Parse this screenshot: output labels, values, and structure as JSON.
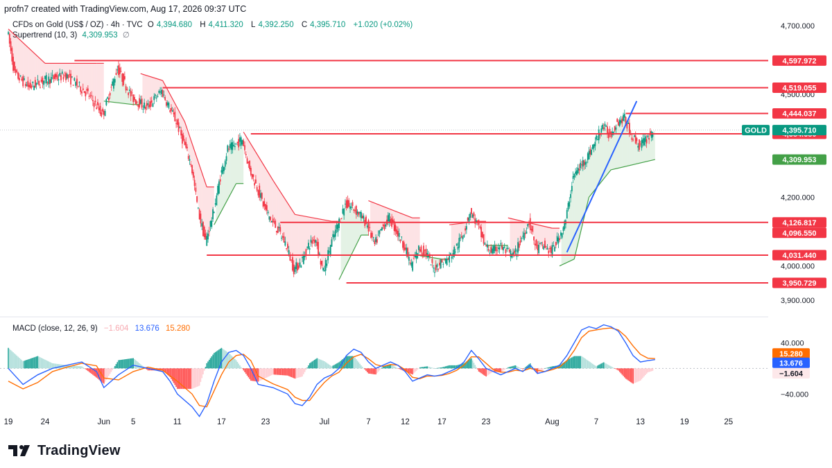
{
  "header": {
    "creator": "profn7 created with TradingView.com, Aug 17, 2026 09:37 UTC"
  },
  "legend": {
    "symbol": "CFDs on Gold (US$ / OZ) · 4h · TVC",
    "open_label": "O",
    "open": "4,394.680",
    "high_label": "H",
    "high": "4,411.320",
    "low_label": "L",
    "low": "4,392.250",
    "close_label": "C",
    "close": "4,395.710",
    "change": "+1.020 (+0.02%)",
    "supertrend_label": "Supertrend (10, 3)",
    "supertrend_value": "4,309.953",
    "supertrend_extra": "∅"
  },
  "macd_legend": {
    "label": "MACD (close, 12, 26, 9)",
    "histogram": "−1.604",
    "macd": "13.676",
    "signal": "15.280"
  },
  "footer": {
    "brand": "TradingView"
  },
  "colors": {
    "up": "#089981",
    "down": "#f23645",
    "level": "#f23645",
    "trendline": "#2962ff",
    "supertrend_up": "#43a047",
    "supertrend_down": "#f23645",
    "macd": "#2962ff",
    "signal": "#ff6d00",
    "price_badge": "#089981"
  },
  "chart_data": [
    {
      "type": "candlestick",
      "symbol_badge": "GOLD",
      "current_price": 4395.71,
      "current_price_label": "4,395.710",
      "ylim": [
        3870,
        4730
      ],
      "y_ticks": [
        3900,
        4000,
        4200,
        4500,
        4700
      ],
      "y_tick_labels": [
        "3,900.000",
        "4,000.000",
        "4,200.000",
        "4,500.000",
        "4,700.000"
      ],
      "x_ticks": [
        {
          "day": 0,
          "label": "19"
        },
        {
          "day": 5,
          "label": "24"
        },
        {
          "day": 13,
          "label": "Jun"
        },
        {
          "day": 17,
          "label": "5"
        },
        {
          "day": 23,
          "label": "11"
        },
        {
          "day": 29,
          "label": "17"
        },
        {
          "day": 35,
          "label": "23"
        },
        {
          "day": 43,
          "label": "Jul"
        },
        {
          "day": 49,
          "label": "7"
        },
        {
          "day": 54,
          "label": "12"
        },
        {
          "day": 59,
          "label": "17"
        },
        {
          "day": 65,
          "label": "23"
        },
        {
          "day": 74,
          "label": "Aug"
        },
        {
          "day": 80,
          "label": "7"
        },
        {
          "day": 86,
          "label": "13"
        },
        {
          "day": 92,
          "label": "19"
        },
        {
          "day": 98,
          "label": "25"
        }
      ],
      "levels": [
        {
          "price": 4597.972,
          "label": "4,597.972",
          "from_day": 9
        },
        {
          "price": 4519.055,
          "label": "4,519.055",
          "from_day": 21
        },
        {
          "price": 4444.037,
          "label": "4,444.037",
          "from_day": 84
        },
        {
          "price": 4384.68,
          "label": "4,384.680",
          "from_day": 33
        },
        {
          "price": 4126.817,
          "label": "4,126.817",
          "from_day": 37
        },
        {
          "price": 4096.55,
          "label": "4,096.550",
          "from_day": null
        },
        {
          "price": 4031.44,
          "label": "4,031.440",
          "from_day": 27
        },
        {
          "price": 3950.729,
          "label": "3,950.729",
          "from_day": 46
        }
      ],
      "supertrend_label": "4,309.953",
      "supertrend_value": 4309.953,
      "trendline": [
        {
          "day": 76,
          "price": 4040
        },
        {
          "day": 85.5,
          "price": 4480
        }
      ],
      "price_path": [
        [
          0,
          4690
        ],
        [
          1,
          4560
        ],
        [
          3,
          4520
        ],
        [
          5,
          4540
        ],
        [
          8,
          4555
        ],
        [
          11,
          4500
        ],
        [
          13,
          4440
        ],
        [
          15,
          4575
        ],
        [
          17,
          4490
        ],
        [
          19,
          4460
        ],
        [
          21,
          4510
        ],
        [
          23,
          4420
        ],
        [
          25,
          4300
        ],
        [
          26,
          4160
        ],
        [
          27,
          4070
        ],
        [
          28,
          4150
        ],
        [
          29,
          4260
        ],
        [
          30,
          4340
        ],
        [
          31,
          4350
        ],
        [
          32,
          4370
        ],
        [
          33,
          4280
        ],
        [
          34,
          4230
        ],
        [
          35,
          4170
        ],
        [
          36,
          4130
        ],
        [
          37,
          4100
        ],
        [
          38,
          4060
        ],
        [
          39,
          3990
        ],
        [
          40,
          4010
        ],
        [
          41,
          4060
        ],
        [
          42,
          4080
        ],
        [
          43,
          3980
        ],
        [
          44,
          4060
        ],
        [
          45,
          4120
        ],
        [
          46,
          4180
        ],
        [
          47,
          4170
        ],
        [
          48,
          4150
        ],
        [
          49,
          4120
        ],
        [
          50,
          4060
        ],
        [
          51,
          4110
        ],
        [
          52,
          4140
        ],
        [
          53,
          4100
        ],
        [
          54,
          4060
        ],
        [
          55,
          4000
        ],
        [
          56,
          4050
        ],
        [
          57,
          4040
        ],
        [
          58,
          3990
        ],
        [
          59,
          4010
        ],
        [
          60,
          4020
        ],
        [
          61,
          4050
        ],
        [
          62,
          4090
        ],
        [
          63,
          4160
        ],
        [
          64,
          4120
        ],
        [
          65,
          4060
        ],
        [
          66,
          4040
        ],
        [
          67,
          4060
        ],
        [
          68,
          4040
        ],
        [
          69,
          4030
        ],
        [
          70,
          4080
        ],
        [
          71,
          4130
        ],
        [
          72,
          4050
        ],
        [
          73,
          4060
        ],
        [
          74,
          4040
        ],
        [
          75,
          4080
        ],
        [
          76,
          4130
        ],
        [
          77,
          4260
        ],
        [
          78,
          4290
        ],
        [
          79,
          4320
        ],
        [
          80,
          4360
        ],
        [
          81,
          4410
        ],
        [
          82,
          4380
        ],
        [
          83,
          4420
        ],
        [
          84,
          4430
        ],
        [
          85,
          4380
        ],
        [
          86,
          4350
        ],
        [
          87,
          4370
        ],
        [
          88,
          4395.71
        ]
      ],
      "supertrend": [
        [
          0,
          4690,
          "down"
        ],
        [
          5,
          4590,
          "down"
        ],
        [
          12,
          4590,
          "down"
        ],
        [
          13,
          4480,
          "up"
        ],
        [
          17,
          4470,
          "up"
        ],
        [
          18,
          4560,
          "down"
        ],
        [
          21,
          4540,
          "down"
        ],
        [
          24,
          4420,
          "down"
        ],
        [
          27,
          4230,
          "down"
        ],
        [
          28,
          4120,
          "up"
        ],
        [
          31,
          4240,
          "up"
        ],
        [
          32,
          4390,
          "down"
        ],
        [
          36,
          4250,
          "down"
        ],
        [
          39,
          4150,
          "down"
        ],
        [
          44,
          4130,
          "down"
        ],
        [
          45,
          3960,
          "up"
        ],
        [
          48,
          4090,
          "up"
        ],
        [
          49,
          4190,
          "down"
        ],
        [
          55,
          4140,
          "down"
        ],
        [
          56,
          4030,
          "up"
        ],
        [
          59,
          4020,
          "up"
        ],
        [
          60,
          4120,
          "down"
        ],
        [
          64,
          4130,
          "down"
        ],
        [
          65,
          4060,
          "up"
        ],
        [
          67,
          4060,
          "up"
        ],
        [
          68,
          4140,
          "down"
        ],
        [
          74,
          4110,
          "down"
        ],
        [
          75,
          4000,
          "up"
        ],
        [
          77,
          4020,
          "up"
        ],
        [
          79,
          4200,
          "up"
        ],
        [
          82,
          4280,
          "up"
        ],
        [
          88,
          4309.953,
          "up"
        ]
      ]
    },
    {
      "type": "macd",
      "ylim": [
        -70,
        75
      ],
      "y_ticks": [
        40,
        -40
      ],
      "y_tick_labels": [
        "40.000",
        "−40.000"
      ],
      "macd_label": "13.676",
      "signal_label": "15.280",
      "histogram_label": "−1.604",
      "macd_value": 13.676,
      "signal_value": 15.28,
      "histogram_value": -1.604,
      "macd_path": [
        [
          0,
          0
        ],
        [
          2,
          -25
        ],
        [
          4,
          -10
        ],
        [
          6,
          0
        ],
        [
          8,
          5
        ],
        [
          10,
          10
        ],
        [
          12,
          -5
        ],
        [
          13,
          -30
        ],
        [
          15,
          -10
        ],
        [
          17,
          5
        ],
        [
          19,
          0
        ],
        [
          21,
          -5
        ],
        [
          22,
          -20
        ],
        [
          23,
          -40
        ],
        [
          25,
          -60
        ],
        [
          26,
          -75
        ],
        [
          27,
          -55
        ],
        [
          28,
          -20
        ],
        [
          29,
          10
        ],
        [
          30,
          25
        ],
        [
          31,
          28
        ],
        [
          32,
          20
        ],
        [
          33,
          0
        ],
        [
          34,
          -25
        ],
        [
          36,
          -30
        ],
        [
          38,
          -40
        ],
        [
          39,
          -55
        ],
        [
          40,
          -58
        ],
        [
          41,
          -45
        ],
        [
          42,
          -25
        ],
        [
          43,
          -15
        ],
        [
          44,
          -10
        ],
        [
          45,
          0
        ],
        [
          46,
          20
        ],
        [
          47,
          30
        ],
        [
          48,
          25
        ],
        [
          49,
          10
        ],
        [
          50,
          0
        ],
        [
          51,
          5
        ],
        [
          52,
          10
        ],
        [
          53,
          5
        ],
        [
          54,
          -5
        ],
        [
          55,
          -20
        ],
        [
          56,
          -15
        ],
        [
          57,
          -10
        ],
        [
          58,
          -12
        ],
        [
          59,
          -10
        ],
        [
          60,
          -5
        ],
        [
          61,
          0
        ],
        [
          62,
          10
        ],
        [
          63,
          28
        ],
        [
          64,
          15
        ],
        [
          65,
          0
        ],
        [
          66,
          -5
        ],
        [
          67,
          -10
        ],
        [
          68,
          -5
        ],
        [
          69,
          0
        ],
        [
          70,
          -5
        ],
        [
          71,
          5
        ],
        [
          72,
          -8
        ],
        [
          73,
          -5
        ],
        [
          74,
          0
        ],
        [
          75,
          5
        ],
        [
          76,
          20
        ],
        [
          77,
          40
        ],
        [
          78,
          60
        ],
        [
          79,
          65
        ],
        [
          80,
          62
        ],
        [
          81,
          68
        ],
        [
          82,
          65
        ],
        [
          83,
          58
        ],
        [
          84,
          40
        ],
        [
          85,
          20
        ],
        [
          86,
          10
        ],
        [
          87,
          12
        ],
        [
          88,
          13.676
        ]
      ],
      "signal_path": [
        [
          0,
          -20
        ],
        [
          2,
          -32
        ],
        [
          4,
          -22
        ],
        [
          6,
          -5
        ],
        [
          8,
          2
        ],
        [
          10,
          8
        ],
        [
          12,
          4
        ],
        [
          13,
          -15
        ],
        [
          15,
          -18
        ],
        [
          17,
          -5
        ],
        [
          19,
          2
        ],
        [
          21,
          -3
        ],
        [
          23,
          -20
        ],
        [
          25,
          -40
        ],
        [
          26,
          -58
        ],
        [
          27,
          -60
        ],
        [
          28,
          -35
        ],
        [
          29,
          -10
        ],
        [
          30,
          10
        ],
        [
          31,
          20
        ],
        [
          32,
          22
        ],
        [
          33,
          12
        ],
        [
          34,
          -12
        ],
        [
          36,
          -24
        ],
        [
          38,
          -33
        ],
        [
          39,
          -45
        ],
        [
          40,
          -50
        ],
        [
          41,
          -50
        ],
        [
          42,
          -35
        ],
        [
          43,
          -22
        ],
        [
          44,
          -12
        ],
        [
          45,
          -6
        ],
        [
          46,
          8
        ],
        [
          47,
          18
        ],
        [
          48,
          22
        ],
        [
          49,
          15
        ],
        [
          50,
          6
        ],
        [
          51,
          3
        ],
        [
          52,
          6
        ],
        [
          53,
          5
        ],
        [
          54,
          -2
        ],
        [
          55,
          -14
        ],
        [
          56,
          -16
        ],
        [
          57,
          -12
        ],
        [
          58,
          -12
        ],
        [
          59,
          -11
        ],
        [
          60,
          -8
        ],
        [
          61,
          -3
        ],
        [
          62,
          5
        ],
        [
          63,
          18
        ],
        [
          64,
          18
        ],
        [
          65,
          8
        ],
        [
          66,
          -2
        ],
        [
          67,
          -6
        ],
        [
          68,
          -6
        ],
        [
          69,
          -3
        ],
        [
          70,
          -4
        ],
        [
          71,
          0
        ],
        [
          72,
          -3
        ],
        [
          73,
          -5
        ],
        [
          74,
          -2
        ],
        [
          75,
          2
        ],
        [
          76,
          12
        ],
        [
          77,
          28
        ],
        [
          78,
          48
        ],
        [
          79,
          58
        ],
        [
          80,
          60
        ],
        [
          81,
          62
        ],
        [
          82,
          63
        ],
        [
          83,
          60
        ],
        [
          84,
          50
        ],
        [
          85,
          35
        ],
        [
          86,
          22
        ],
        [
          87,
          16
        ],
        [
          88,
          15.28
        ]
      ]
    }
  ]
}
